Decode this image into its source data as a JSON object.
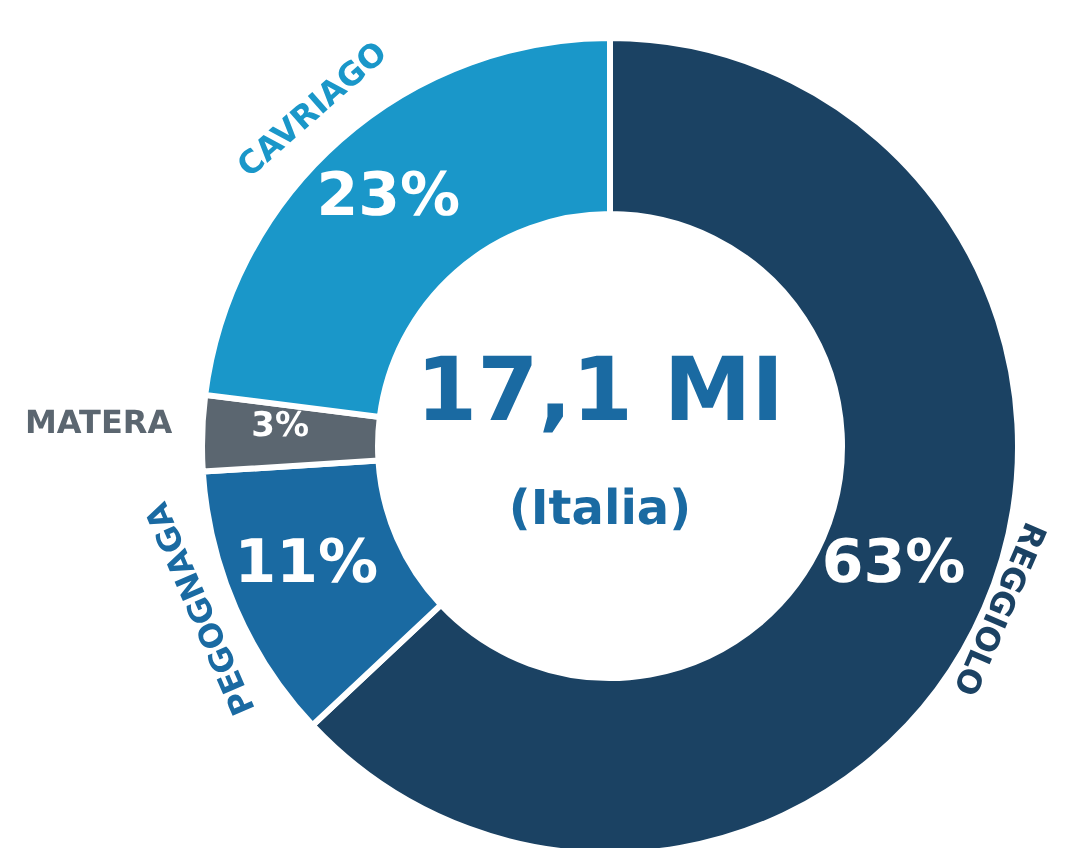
{
  "chart_data": {
    "type": "donut",
    "title": "17,1 MI",
    "subtitle": "(Italia)",
    "categories": [
      "REGGIOLO",
      "PEGOGNAGA",
      "MATERA",
      "CAVRIAGO"
    ],
    "values": [
      63,
      11,
      3,
      23
    ],
    "colors": [
      "#1b4263",
      "#1a6aa2",
      "#5b6670",
      "#1a97c9"
    ],
    "value_labels": [
      "63%",
      "11%",
      "3%",
      "23%"
    ]
  }
}
